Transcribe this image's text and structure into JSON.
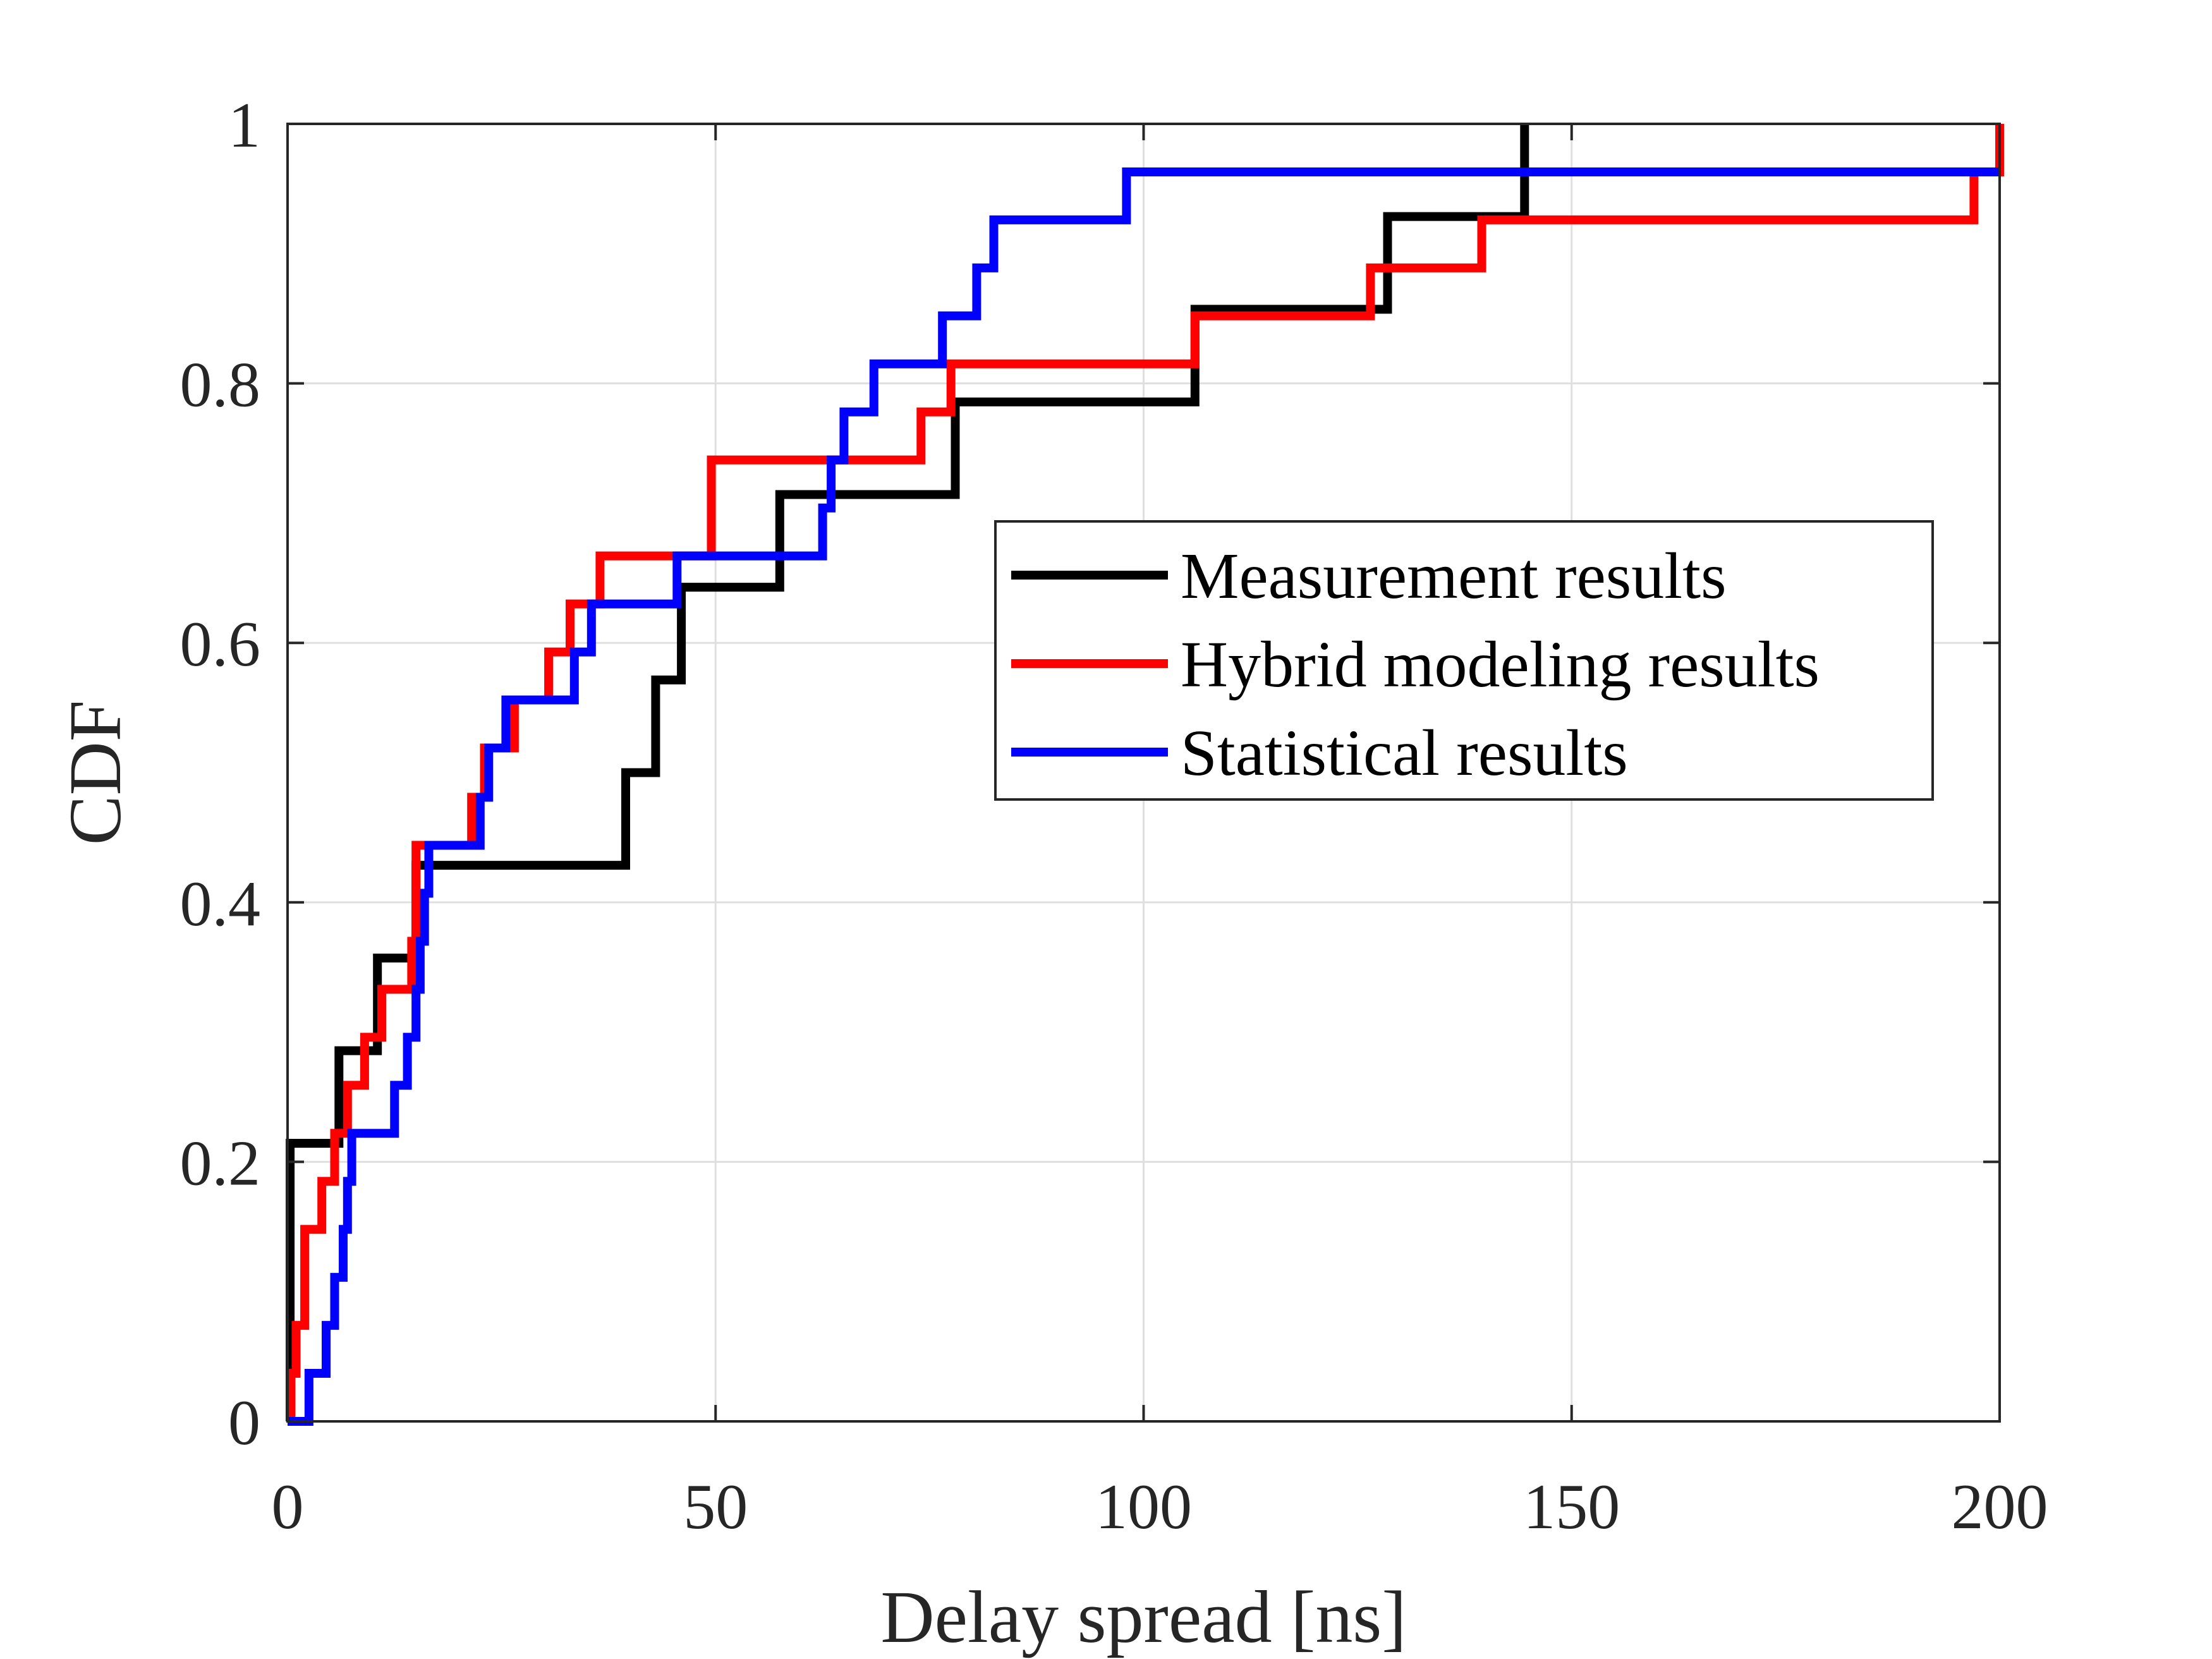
{
  "chart_data": {
    "type": "line",
    "subtype": "step-cdf",
    "title": "",
    "xlabel": "Delay spread [ns]",
    "ylabel": "CDF",
    "xlim": [
      0,
      200
    ],
    "ylim": [
      0,
      1
    ],
    "xticks": [
      0,
      50,
      100,
      150,
      200
    ],
    "xtick_labels": [
      "0",
      "50",
      "100",
      "150",
      "200"
    ],
    "yticks": [
      0,
      0.2,
      0.4,
      0.6,
      0.8,
      1
    ],
    "ytick_labels": [
      "0",
      "0.2",
      "0.4",
      "0.6",
      "0.8",
      "1"
    ],
    "grid": true,
    "legend_position": "center-right",
    "series": [
      {
        "name": "Measurement results",
        "color": "#000000",
        "x": [
          0,
          0.3,
          6,
          10.5,
          15,
          39.5,
          43,
          46,
          57.5,
          78,
          106,
          128.5,
          144.5
        ],
        "values": [
          0,
          0.2143,
          0.2857,
          0.3571,
          0.4286,
          0.5,
          0.5714,
          0.6429,
          0.7143,
          0.7857,
          0.8571,
          0.9286,
          1.0
        ]
      },
      {
        "name": "Hybrid modeling results",
        "color": "#ff0000",
        "x": [
          0,
          0.4,
          1,
          2,
          4,
          5.5,
          7,
          9,
          11,
          14.5,
          15,
          21.5,
          23,
          26.5,
          30.5,
          33,
          36.5,
          49.5,
          74,
          77.5,
          106,
          126.5,
          139.5,
          197,
          200
        ],
        "values": [
          0,
          0.037,
          0.074,
          0.148,
          0.185,
          0.222,
          0.259,
          0.296,
          0.333,
          0.37,
          0.444,
          0.481,
          0.519,
          0.556,
          0.593,
          0.63,
          0.667,
          0.741,
          0.778,
          0.815,
          0.852,
          0.889,
          0.926,
          0.963,
          1.0
        ]
      },
      {
        "name": "Statistical results",
        "color": "#0000ff",
        "x": [
          0,
          2.5,
          4.5,
          5.5,
          6.5,
          7,
          7.5,
          12.5,
          14,
          15,
          15.5,
          16,
          16.5,
          22.5,
          23.5,
          25.5,
          33.5,
          35.5,
          45.5,
          62.5,
          63.5,
          65,
          68.5,
          76.5,
          80.5,
          82.5,
          98,
          125,
          200
        ],
        "values": [
          0,
          0.037,
          0.074,
          0.111,
          0.148,
          0.185,
          0.222,
          0.259,
          0.296,
          0.333,
          0.37,
          0.407,
          0.444,
          0.481,
          0.519,
          0.556,
          0.593,
          0.63,
          0.667,
          0.704,
          0.741,
          0.778,
          0.815,
          0.852,
          0.889,
          0.926,
          0.963,
          0.963,
          0.963
        ]
      }
    ]
  }
}
